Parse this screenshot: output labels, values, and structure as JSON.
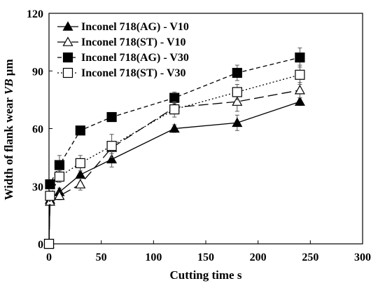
{
  "chart_data": {
    "type": "line",
    "xlabel": "Cutting time s",
    "ylabel_prefix": "Width of flank wear ",
    "ylabel_italic": "VB",
    "ylabel_suffix": " μm",
    "xlim": [
      0,
      300
    ],
    "ylim": [
      0,
      120
    ],
    "xticks": [
      "0",
      "50",
      "100",
      "150",
      "200",
      "250",
      "300"
    ],
    "yticks": [
      "0",
      "30",
      "60",
      "90",
      "120"
    ],
    "grid": false,
    "legend_position": "top-left",
    "series": [
      {
        "name": "Inconel 718(AG) - V10",
        "marker": "triangle-filled",
        "line": "solid",
        "x": [
          0,
          1,
          10,
          30,
          60,
          120,
          180,
          240
        ],
        "y": [
          0,
          23,
          27,
          36,
          44,
          60,
          63,
          74
        ],
        "err": [
          0,
          2,
          2,
          4,
          4,
          2,
          4,
          2
        ]
      },
      {
        "name": "Inconel 718(ST) - V10",
        "marker": "triangle-open",
        "line": "long-dash",
        "x": [
          0,
          1,
          10,
          30,
          60,
          120,
          180,
          240
        ],
        "y": [
          0,
          22,
          25,
          31,
          50,
          71,
          74,
          80
        ],
        "err": [
          0,
          2,
          2,
          3,
          3,
          3,
          5,
          4
        ]
      },
      {
        "name": "Inconel 718(AG) - V30",
        "marker": "square-filled",
        "line": "short-dash",
        "x": [
          0,
          1,
          10,
          30,
          60,
          120,
          180,
          240
        ],
        "y": [
          0,
          31,
          41,
          59,
          66,
          76,
          89,
          97
        ],
        "err": [
          0,
          2,
          5,
          2,
          2,
          3,
          4,
          5
        ]
      },
      {
        "name": "Inconel 718(ST) - V30",
        "marker": "square-open",
        "line": "dotted",
        "x": [
          0,
          1,
          10,
          30,
          60,
          120,
          180,
          240
        ],
        "y": [
          0,
          25,
          35,
          42,
          51,
          70,
          79,
          88
        ],
        "err": [
          0,
          2,
          3,
          4,
          6,
          4,
          4,
          5
        ]
      }
    ]
  }
}
